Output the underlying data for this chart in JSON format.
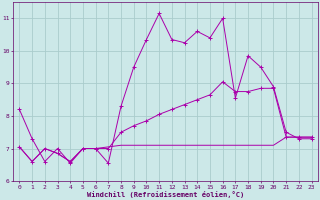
{
  "xlabel": "Windchill (Refroidissement éolien,°C)",
  "ylabel": "",
  "background_color": "#cce8e8",
  "grid_color": "#aacccc",
  "line_color": "#aa00aa",
  "xlim": [
    -0.5,
    23.5
  ],
  "ylim": [
    6,
    11.5
  ],
  "xticks": [
    0,
    1,
    2,
    3,
    4,
    5,
    6,
    7,
    8,
    9,
    10,
    11,
    12,
    13,
    14,
    15,
    16,
    17,
    18,
    19,
    20,
    21,
    22,
    23
  ],
  "yticks": [
    6,
    7,
    8,
    9,
    10,
    11
  ],
  "line1_x": [
    0,
    1,
    2,
    3,
    4,
    5,
    6,
    7,
    8,
    9,
    10,
    11,
    12,
    13,
    14,
    15,
    16,
    17,
    18,
    19,
    20,
    21,
    22,
    23
  ],
  "line1_y": [
    8.2,
    7.3,
    6.6,
    7.0,
    6.55,
    7.0,
    7.0,
    6.55,
    8.3,
    9.5,
    10.35,
    11.15,
    10.35,
    10.25,
    10.6,
    10.4,
    11.0,
    8.55,
    9.85,
    9.5,
    8.9,
    7.5,
    7.3,
    7.3
  ],
  "line2_x": [
    0,
    1,
    2,
    3,
    4,
    5,
    6,
    7,
    8,
    9,
    10,
    11,
    12,
    13,
    14,
    15,
    16,
    17,
    18,
    19,
    20,
    21,
    22,
    23
  ],
  "line2_y": [
    7.05,
    6.6,
    7.0,
    6.85,
    6.6,
    7.0,
    7.0,
    7.0,
    7.5,
    7.7,
    7.85,
    8.05,
    8.2,
    8.35,
    8.5,
    8.65,
    9.05,
    8.75,
    8.75,
    8.85,
    8.85,
    7.35,
    7.35,
    7.35
  ],
  "line3_x": [
    0,
    1,
    2,
    3,
    4,
    5,
    6,
    7,
    8,
    9,
    10,
    11,
    12,
    13,
    14,
    15,
    16,
    17,
    18,
    19,
    20,
    21,
    22,
    23
  ],
  "line3_y": [
    7.05,
    6.6,
    7.0,
    6.85,
    6.6,
    7.0,
    7.0,
    7.05,
    7.1,
    7.1,
    7.1,
    7.1,
    7.1,
    7.1,
    7.1,
    7.1,
    7.1,
    7.1,
    7.1,
    7.1,
    7.1,
    7.35,
    7.35,
    7.35
  ],
  "font_color": "#660066",
  "tick_fontsize": 4.5,
  "xlabel_fontsize": 5.0
}
